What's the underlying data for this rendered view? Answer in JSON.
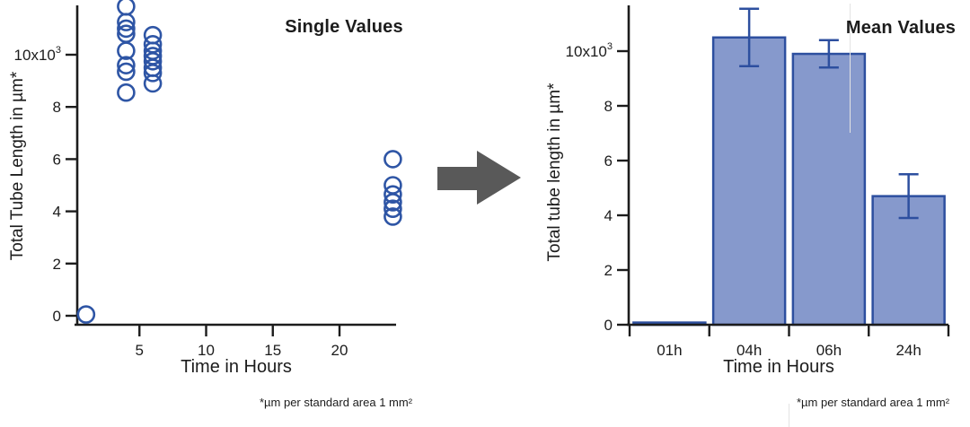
{
  "figure": {
    "background": "#ffffff",
    "text_color": "#1c1c1c",
    "axis_color": "#1c1c1c",
    "arrow": {
      "icon": "right-arrow",
      "color": "#595959"
    }
  },
  "chart_data": [
    {
      "type": "scatter",
      "title": "Single Values",
      "xlabel": "Time in Hours",
      "ylabel": "Total Tube Length in µm*",
      "footnote": "*µm per standard area 1 mm²",
      "xlim": [
        0,
        24.5
      ],
      "ylim": [
        0,
        11.9
      ],
      "y_unit_multiplier": 1000,
      "grid": false,
      "legend": "none",
      "x_ticks": [
        {
          "v": 5,
          "label": "5"
        },
        {
          "v": 10,
          "label": "10"
        },
        {
          "v": 15,
          "label": "15"
        },
        {
          "v": 20,
          "label": "20"
        }
      ],
      "y_ticks": [
        {
          "v": 0,
          "label": "0"
        },
        {
          "v": 2,
          "label": "2"
        },
        {
          "v": 4,
          "label": "4"
        },
        {
          "v": 6,
          "label": "6"
        },
        {
          "v": 8,
          "label": "8"
        },
        {
          "v": 10,
          "label": "10x10",
          "sup": "3"
        }
      ],
      "marker": {
        "shape": "open-circle",
        "stroke": "#2e55a5",
        "radius": 9
      },
      "points": [
        {
          "x": 1,
          "y": 0.05
        },
        {
          "x": 4,
          "y": 11.85
        },
        {
          "x": 4,
          "y": 11.25
        },
        {
          "x": 4,
          "y": 11.0
        },
        {
          "x": 4,
          "y": 10.8
        },
        {
          "x": 4,
          "y": 10.15
        },
        {
          "x": 4,
          "y": 9.6
        },
        {
          "x": 4,
          "y": 9.35
        },
        {
          "x": 4,
          "y": 8.55
        },
        {
          "x": 6,
          "y": 10.75
        },
        {
          "x": 6,
          "y": 10.4
        },
        {
          "x": 6,
          "y": 10.15
        },
        {
          "x": 6,
          "y": 9.95
        },
        {
          "x": 6,
          "y": 9.75
        },
        {
          "x": 6,
          "y": 9.5
        },
        {
          "x": 6,
          "y": 9.3
        },
        {
          "x": 6,
          "y": 8.9
        },
        {
          "x": 24,
          "y": 6.0
        },
        {
          "x": 24,
          "y": 5.0
        },
        {
          "x": 24,
          "y": 4.65
        },
        {
          "x": 24,
          "y": 4.35
        },
        {
          "x": 24,
          "y": 4.1
        },
        {
          "x": 24,
          "y": 3.8
        }
      ]
    },
    {
      "type": "bar",
      "title": "Mean Values",
      "xlabel": "Time in Hours",
      "ylabel": "Total tube length in µm*",
      "footnote": "*µm per standard area 1 mm²",
      "categories": [
        "01h",
        "04h",
        "06h",
        "24h"
      ],
      "values": [
        0.08,
        10.5,
        9.9,
        4.7
      ],
      "errors": [
        0,
        1.05,
        0.5,
        0.8
      ],
      "ylim": [
        0,
        11.9
      ],
      "y_unit_multiplier": 1000,
      "grid": false,
      "legend": "none",
      "y_ticks": [
        {
          "v": 0,
          "label": "0"
        },
        {
          "v": 2,
          "label": "2"
        },
        {
          "v": 4,
          "label": "4"
        },
        {
          "v": 6,
          "label": "6"
        },
        {
          "v": 8,
          "label": "8"
        },
        {
          "v": 10,
          "label": "10x10",
          "sup": "3"
        }
      ],
      "bar_fill": "#8699cc",
      "bar_stroke": "#2d4f9f",
      "first_bar_fill": "#1d3c8f",
      "error_color": "#2d4f9f"
    }
  ]
}
